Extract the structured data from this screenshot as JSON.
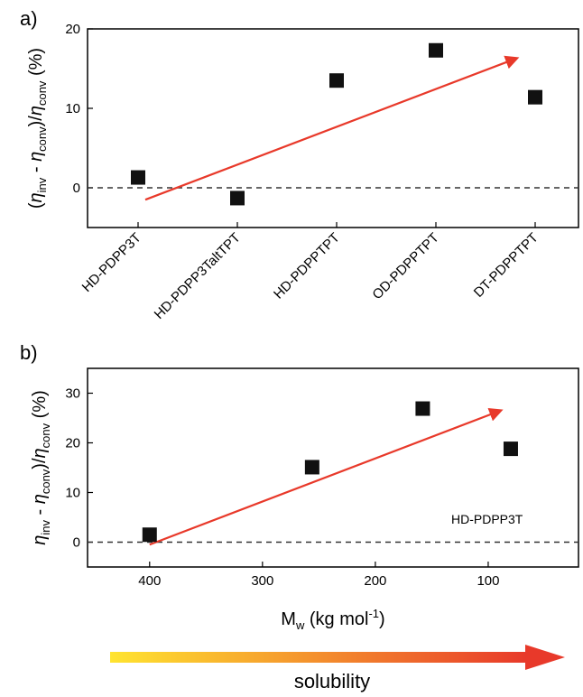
{
  "figure": {
    "solubility_label": "solubility",
    "colors": {
      "marker": "#111111",
      "arrow": "#e8392a",
      "gradient_start": "#ffe430",
      "gradient_end": "#e8392a",
      "zero_line": "#333333"
    }
  },
  "chart_data": [
    {
      "type": "scatter",
      "panel_label": "a)",
      "title": "",
      "ylabel": {
        "open": "(",
        "eta": "η",
        "sub_inv": "inv",
        "minus": " - ",
        "sub_conv": "conv",
        "close": ")/",
        "unit": " (%)"
      },
      "xlabel": "",
      "categories": [
        "HD-PDPP3T",
        "HD-PDPP3TaltTPT",
        "HD-PDPPTPT",
        "OD-PDPPTPT",
        "DT-PDPPTPT"
      ],
      "values": [
        1.3,
        -1.3,
        13.5,
        17.3,
        11.4
      ],
      "ylim": [
        -5,
        20
      ],
      "yticks": [
        0,
        10,
        20
      ],
      "reference_line": 0,
      "trend_arrow": {
        "from": [
          0,
          -1.5
        ],
        "to": [
          3.95,
          16.3
        ]
      }
    },
    {
      "type": "scatter",
      "panel_label": "b)",
      "title": "",
      "ylabel": {
        "eta": "η",
        "sub_inv": "inv",
        "minus": " - ",
        "sub_conv": "conv",
        "close": ")/",
        "unit": " (%)"
      },
      "xlabel": {
        "main": "M",
        "sub": "w",
        "unit": " (kg mol",
        "sup": "-1",
        "end": ")"
      },
      "x": [
        400,
        256,
        158,
        80
      ],
      "y": [
        1.5,
        15.1,
        26.9,
        18.8
      ],
      "xlim": [
        455,
        20
      ],
      "xticks": [
        400,
        300,
        200,
        100
      ],
      "ylim": [
        -5,
        35
      ],
      "yticks": [
        0,
        10,
        20,
        30
      ],
      "reference_line": 0,
      "annotation": "HD-PDPP3T",
      "trend_arrow": {
        "from": [
          400,
          -0.5
        ],
        "to": [
          89,
          26.5
        ]
      }
    }
  ]
}
